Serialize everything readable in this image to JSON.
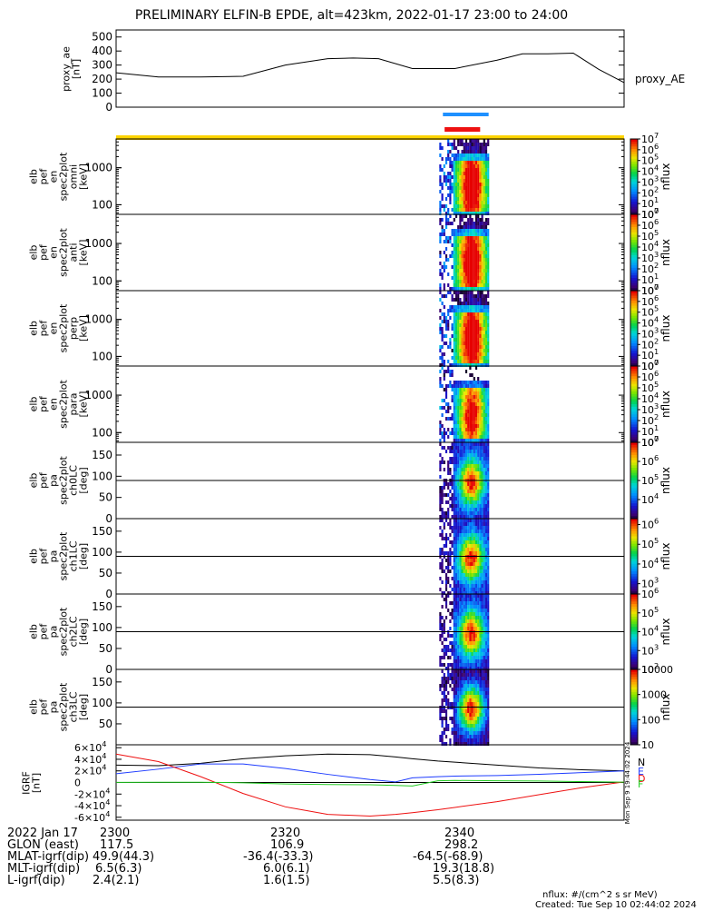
{
  "title": "PRELIMINARY ELFIN-B EPDE, alt=423km, 2022-01-17 23:00 to 24:00",
  "colors": {
    "ae_line": "#000000",
    "bar_blue": "#1e90ff",
    "bar_red": "#ee1111",
    "bar_yellow": "#ffd400",
    "grf_n": "#000000",
    "grf_e": "#1e3cff",
    "grf_d": "#ee1111",
    "grf_f": "#22cc22"
  },
  "vertical_label": "Mon Sep 9 19:44:02 2024",
  "chart_data": [
    {
      "type": "line",
      "panel": "proxy_ae",
      "ylabel": "proxy_ae [nT]",
      "legend": "proxy_AE",
      "ylim": [
        0,
        550
      ],
      "yticks": [
        0,
        100,
        200,
        300,
        400,
        500
      ],
      "xlim": [
        0,
        60
      ],
      "x": [
        0,
        5,
        10,
        15,
        20,
        25,
        28,
        31,
        35,
        40,
        45,
        48,
        51,
        54,
        57,
        60
      ],
      "values": [
        245,
        215,
        215,
        220,
        300,
        345,
        350,
        345,
        275,
        275,
        335,
        380,
        380,
        385,
        270,
        175
      ],
      "bars": [
        {
          "color": "blue",
          "x_start": 38.6,
          "x_end": 44.0
        },
        {
          "color": "red",
          "x_start": 38.8,
          "x_end": 43.0
        },
        {
          "color": "yellow",
          "x_start": 0,
          "x_end": 60
        }
      ]
    },
    {
      "type": "heatmap",
      "panel": "energy_omni",
      "ylabel": "elb pef en spec2plot omni [keV]",
      "yscale": "log",
      "ylim": [
        55,
        6000
      ],
      "yticks": [
        100,
        1000
      ],
      "active_x": [
        38.6,
        44.0
      ],
      "colorbar": {
        "label": "nflux",
        "scale": "log",
        "range": [
          1,
          10000000
        ],
        "ticks": [
          "10^7",
          "10^6",
          "10^5",
          "10^4",
          "10^3",
          "10^2",
          "10^1",
          "10^0"
        ]
      }
    },
    {
      "type": "heatmap",
      "panel": "energy_anti",
      "ylabel": "elb pef en spec2plot anti [keV]",
      "yscale": "log",
      "ylim": [
        55,
        6000
      ],
      "yticks": [
        100,
        1000
      ],
      "active_x": [
        38.6,
        44.0
      ],
      "colorbar": {
        "label": "nflux",
        "scale": "log",
        "range": [
          1,
          10000000
        ],
        "ticks": [
          "10^7",
          "10^6",
          "10^5",
          "10^4",
          "10^3",
          "10^2",
          "10^1",
          "10^0"
        ]
      }
    },
    {
      "type": "heatmap",
      "panel": "energy_perp",
      "ylabel": "elb pef en spec2plot perp [keV]",
      "yscale": "log",
      "ylim": [
        55,
        6000
      ],
      "yticks": [
        100,
        1000
      ],
      "active_x": [
        38.6,
        44.0
      ],
      "colorbar": {
        "label": "nflux",
        "scale": "log",
        "range": [
          1,
          10000000
        ],
        "ticks": [
          "10^7",
          "10^6",
          "10^5",
          "10^4",
          "10^3",
          "10^2",
          "10^1",
          "10^0"
        ]
      }
    },
    {
      "type": "heatmap",
      "panel": "energy_para",
      "ylabel": "elb pef en spec2plot para [keV]",
      "yscale": "log",
      "ylim": [
        55,
        6000
      ],
      "yticks": [
        100,
        1000
      ],
      "active_x": [
        38.6,
        44.0
      ],
      "colorbar": {
        "label": "nflux",
        "scale": "log",
        "range": [
          1,
          10000000
        ],
        "ticks": [
          "10^7",
          "10^6",
          "10^5",
          "10^4",
          "10^3",
          "10^2",
          "10^1",
          "10^0"
        ]
      }
    },
    {
      "type": "heatmap",
      "panel": "pa_ch0",
      "ylabel": "elb pef pa spec2plot ch0LC [deg]",
      "ylim": [
        0,
        180
      ],
      "yticks": [
        0,
        50,
        100,
        150
      ],
      "loss_cone_line": 90,
      "active_x": [
        38.6,
        44.0
      ],
      "colorbar": {
        "label": "nflux",
        "scale": "log",
        "range": [
          1000,
          10000000
        ],
        "ticks": [
          "10^7",
          "10^6",
          "10^5",
          "10^4"
        ]
      }
    },
    {
      "type": "heatmap",
      "panel": "pa_ch1",
      "ylabel": "elb pef pa spec2plot ch1LC [deg]",
      "ylim": [
        0,
        180
      ],
      "yticks": [
        0,
        50,
        100,
        150
      ],
      "loss_cone_line": 90,
      "active_x": [
        38.6,
        44.0
      ],
      "colorbar": {
        "label": "nflux",
        "scale": "log",
        "range": [
          300,
          2000000
        ],
        "ticks": [
          "10^6",
          "10^5",
          "10^4",
          "10^3"
        ]
      }
    },
    {
      "type": "heatmap",
      "panel": "pa_ch2",
      "ylabel": "elb pef pa spec2plot ch2LC [deg]",
      "ylim": [
        0,
        180
      ],
      "yticks": [
        0,
        50,
        100,
        150
      ],
      "loss_cone_line": 90,
      "active_x": [
        38.6,
        44.0
      ],
      "colorbar": {
        "label": "nflux",
        "scale": "log",
        "range": [
          100,
          1000000
        ],
        "ticks": [
          "10^6",
          "10^5",
          "10^4",
          "10^3",
          "10^2"
        ]
      }
    },
    {
      "type": "heatmap",
      "panel": "pa_ch3",
      "ylabel": "elb pef pa spec2plot ch3LC [deg]",
      "ylim": [
        0,
        180
      ],
      "yticks": [
        50,
        100,
        150
      ],
      "loss_cone_line": 90,
      "active_x": [
        38.6,
        44.0
      ],
      "colorbar": {
        "label": "nflux",
        "scale": "log",
        "range": [
          10,
          10000
        ],
        "ticks": [
          "10000",
          "1000",
          "100",
          "10"
        ]
      }
    },
    {
      "type": "line",
      "panel": "igrf",
      "ylabel": "IGRF [nT]",
      "ylim": [
        -65000,
        65000
      ],
      "yticks": [
        "6x10^4",
        "4x10^4",
        "2x10^4",
        "0",
        "-2x10^4",
        "-4x10^4",
        "-6x10^4"
      ],
      "x": [
        0,
        5,
        10,
        15,
        20,
        25,
        30,
        33,
        35,
        38,
        40,
        45,
        50,
        55,
        60
      ],
      "series": [
        {
          "name": "N",
          "color": "black",
          "values": [
            30000,
            29000,
            33000,
            41000,
            46000,
            49000,
            48000,
            44000,
            41000,
            37000,
            35000,
            30000,
            25000,
            22000,
            20000
          ]
        },
        {
          "name": "E",
          "color": "blue",
          "values": [
            15000,
            23000,
            32000,
            32000,
            24000,
            14000,
            5000,
            1000,
            8000,
            10000,
            11000,
            12000,
            14000,
            17000,
            20000
          ]
        },
        {
          "name": "D",
          "color": "red",
          "values": [
            49000,
            36000,
            10000,
            -19000,
            -42000,
            -55000,
            -58000,
            -55000,
            -52000,
            -47000,
            -43000,
            -33000,
            -21000,
            -9000,
            1000
          ]
        },
        {
          "name": "F",
          "color": "green",
          "values": [
            200,
            300,
            400,
            -500,
            -2500,
            -3500,
            -4000,
            -5000,
            -6000,
            3000,
            3500,
            3000,
            2500,
            1500,
            500
          ]
        }
      ]
    }
  ],
  "ephemeris": {
    "rows": [
      {
        "label": "2022 Jan 17",
        "values": [
          "2300",
          "2320",
          "2340"
        ]
      },
      {
        "label": "GLON (east)",
        "values": [
          "117.5",
          "106.9",
          "298.2"
        ]
      },
      {
        "label": "MLAT-igrf(dip)",
        "values": [
          "49.9(44.3)",
          "-36.4(-33.3)",
          "-64.5(-68.9)"
        ]
      },
      {
        "label": "MLT-igrf(dip)",
        "values": [
          "6.5(6.3)",
          "6.0(6.1)",
          "19.3(18.8)"
        ]
      },
      {
        "label": "L-igrf(dip)",
        "values": [
          "2.4(2.1)",
          "1.6(1.5)",
          "5.5(8.3)"
        ]
      }
    ]
  },
  "footer": {
    "units": "nflux: #/(cm^2 s sr MeV)",
    "created": "Created: Tue Sep 10 02:44:02 2024"
  }
}
